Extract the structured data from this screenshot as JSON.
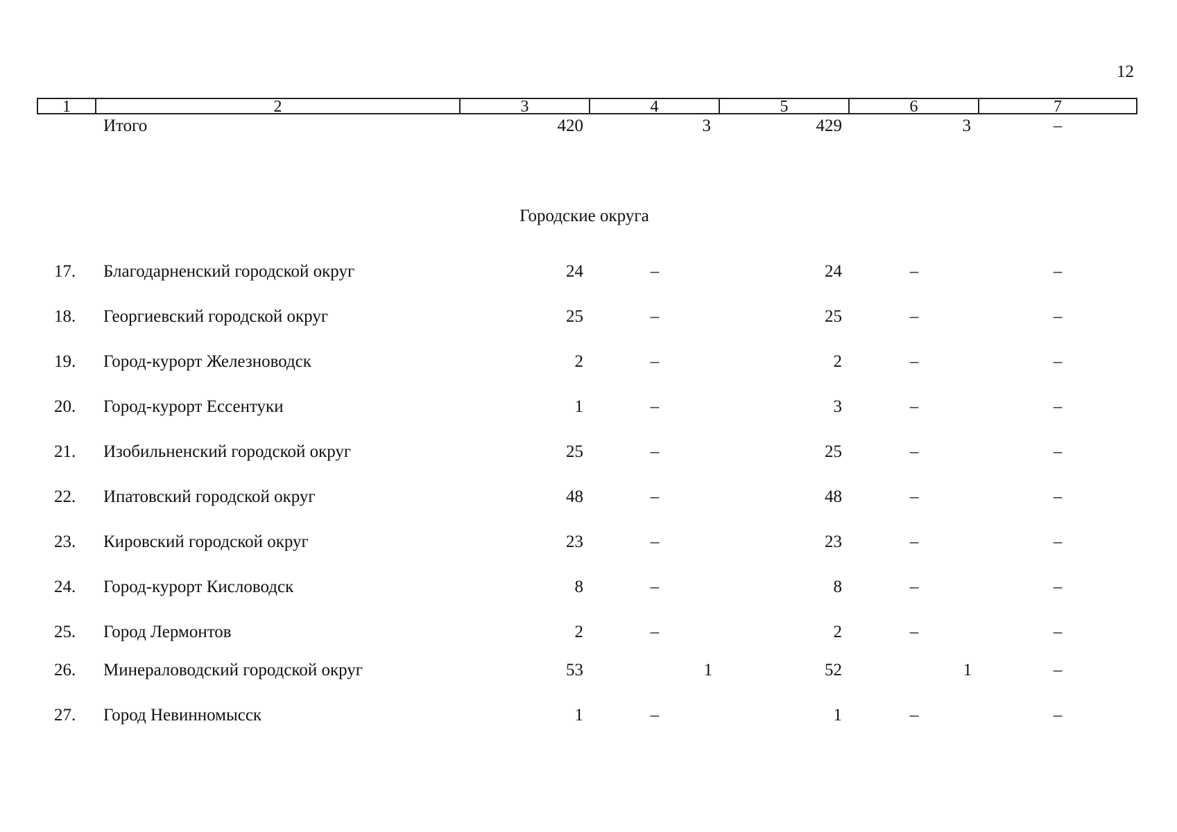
{
  "page_number": "12",
  "header_columns": [
    "1",
    "2",
    "3",
    "4",
    "5",
    "6",
    "7"
  ],
  "total_row": {
    "label": "Итого",
    "c3": "420",
    "c4": "3",
    "c5": "429",
    "c6": "3",
    "c7": "–"
  },
  "section_title": "Городские округа",
  "rows": [
    {
      "num": "17.",
      "name": "Благодарненский городской округ",
      "c3": "24",
      "c4": "–",
      "c5": "24",
      "c6": "–",
      "c7": "–"
    },
    {
      "num": "18.",
      "name": "Георгиевский городской округ",
      "c3": "25",
      "c4": "–",
      "c5": "25",
      "c6": "–",
      "c7": "–"
    },
    {
      "num": "19.",
      "name": "Город-курорт Железноводск",
      "c3": "2",
      "c4": "–",
      "c5": "2",
      "c6": "–",
      "c7": "–"
    },
    {
      "num": "20.",
      "name": "Город-курорт Ессентуки",
      "c3": "1",
      "c4": "–",
      "c5": "3",
      "c6": "–",
      "c7": "–"
    },
    {
      "num": "21.",
      "name": "Изобильненский городской округ",
      "c3": "25",
      "c4": "–",
      "c5": "25",
      "c6": "–",
      "c7": "–"
    },
    {
      "num": "22.",
      "name": "Ипатовский городской округ",
      "c3": "48",
      "c4": "–",
      "c5": "48",
      "c6": "–",
      "c7": "–"
    },
    {
      "num": "23.",
      "name": "Кировский городской округ",
      "c3": "23",
      "c4": "–",
      "c5": "23",
      "c6": "–",
      "c7": "–"
    },
    {
      "num": "24.",
      "name": "Город-курорт Кисловодск",
      "c3": "8",
      "c4": "–",
      "c5": "8",
      "c6": "–",
      "c7": "–"
    },
    {
      "num": "25.",
      "name": "Город Лермонтов",
      "c3": "2",
      "c4": "–",
      "c5": "2",
      "c6": "–",
      "c7": "–"
    },
    {
      "num": "26.",
      "name": "Минераловодский городской округ",
      "c3": "53",
      "c4": "1",
      "c5": "52",
      "c6": "1",
      "c7": "–"
    },
    {
      "num": "27.",
      "name": "Город Невинномысск",
      "c3": "1",
      "c4": "–",
      "c5": "1",
      "c6": "–",
      "c7": "–"
    }
  ]
}
